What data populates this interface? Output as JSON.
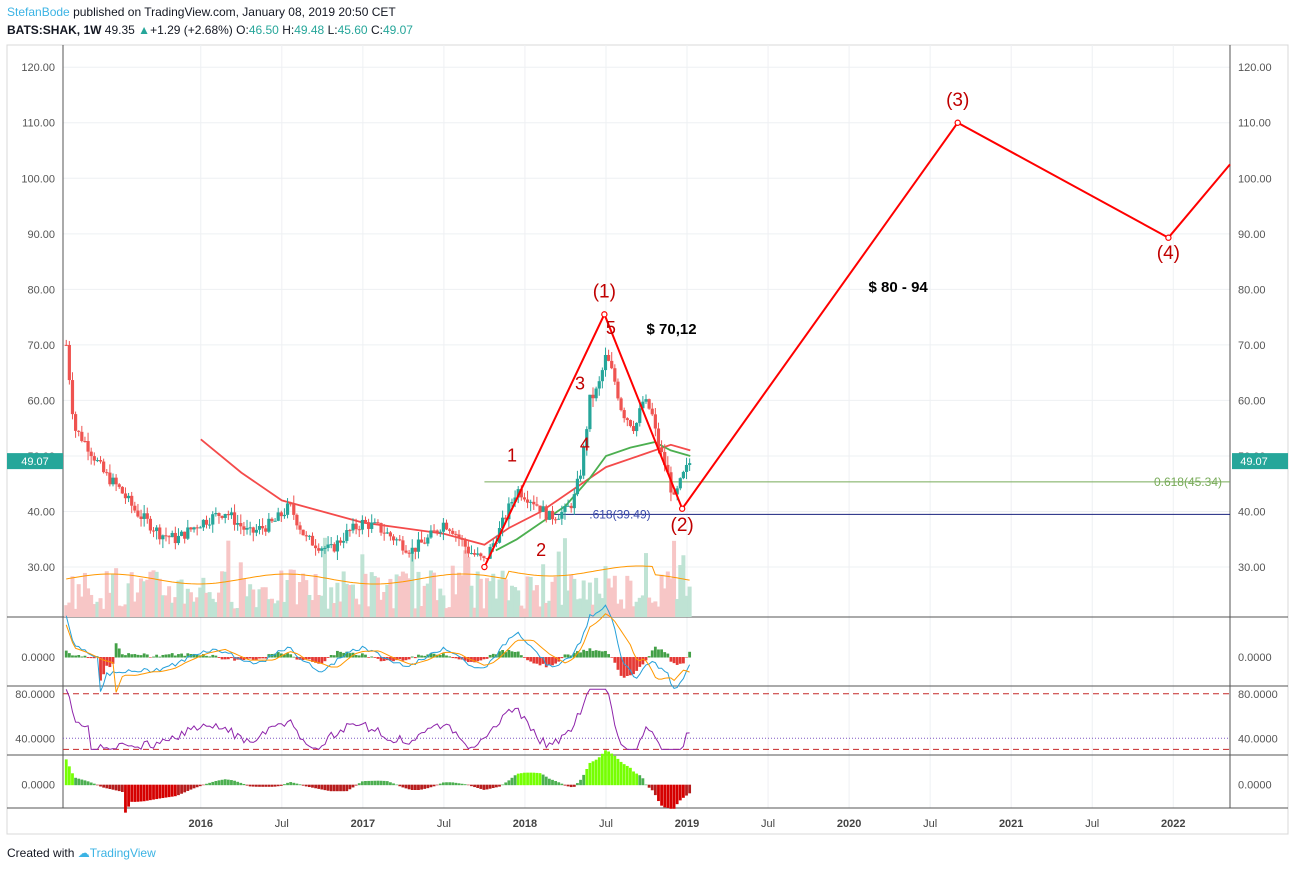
{
  "header": {
    "author": "StefanBode",
    "published": "published on TradingView.com, January 08, 2019 20:50 CET",
    "symbol": "BATS:SHAK, 1W",
    "price": "49.35",
    "change_arrow": "▲",
    "change": "+1.29 (+2.68%)",
    "o_label": "O:",
    "o": "46.50",
    "h_label": "H:",
    "h": "49.48",
    "l_label": "L:",
    "l": "45.60",
    "c_label": "C:",
    "c": "49.07"
  },
  "footer": {
    "created_with": "Created with",
    "brand": "TradingView"
  },
  "colors": {
    "up": "#26a69a",
    "down": "#ef5350",
    "wave": "#ff0000",
    "wave_label": "#c00000",
    "ma_red": "#f44b4b",
    "ma_green": "#4caf50",
    "fib_green": "#78ab59",
    "fib_navy": "#1a237e",
    "rsi": "#8e24aa",
    "macd_line": "#26a0d9",
    "signal_line": "#ff9800"
  },
  "chart_data": {
    "type": "candlestick",
    "price_axis": {
      "min": 21,
      "max": 124,
      "ticks": [
        30,
        40,
        50,
        60,
        70,
        80,
        90,
        100,
        110,
        120
      ],
      "tick_labels": [
        "30.00",
        "40.00",
        "50.00",
        "60.00",
        "70.00",
        "80.00",
        "90.00",
        "100.00",
        "110.00",
        "120.00"
      ]
    },
    "last_price_label": "49.07",
    "last_price": 49.07,
    "time_axis": {
      "start": 2015.15,
      "end": 2022.35,
      "ticks": [
        {
          "t": 2016.0,
          "label": "2016",
          "bold": true
        },
        {
          "t": 2016.5,
          "label": "Jul",
          "bold": false
        },
        {
          "t": 2017.0,
          "label": "2017",
          "bold": true
        },
        {
          "t": 2017.5,
          "label": "Jul",
          "bold": false
        },
        {
          "t": 2018.0,
          "label": "2018",
          "bold": true
        },
        {
          "t": 2018.5,
          "label": "Jul",
          "bold": false
        },
        {
          "t": 2019.0,
          "label": "2019",
          "bold": true
        },
        {
          "t": 2019.5,
          "label": "Jul",
          "bold": false
        },
        {
          "t": 2020.0,
          "label": "2020",
          "bold": true
        },
        {
          "t": 2020.5,
          "label": "Jul",
          "bold": false
        },
        {
          "t": 2021.0,
          "label": "2021",
          "bold": true
        },
        {
          "t": 2021.5,
          "label": "Jul",
          "bold": false
        },
        {
          "t": 2022.0,
          "label": "2022",
          "bold": true
        }
      ]
    },
    "price_path": [
      [
        2015.17,
        70
      ],
      [
        2015.22,
        55
      ],
      [
        2015.3,
        52
      ],
      [
        2015.4,
        47
      ],
      [
        2015.5,
        44
      ],
      [
        2015.6,
        40
      ],
      [
        2015.75,
        36
      ],
      [
        2015.85,
        35
      ],
      [
        2016.0,
        38
      ],
      [
        2016.15,
        40
      ],
      [
        2016.3,
        36
      ],
      [
        2016.45,
        38
      ],
      [
        2016.55,
        41
      ],
      [
        2016.65,
        35
      ],
      [
        2016.8,
        33
      ],
      [
        2016.9,
        36
      ],
      [
        2017.0,
        38
      ],
      [
        2017.1,
        37
      ],
      [
        2017.2,
        35
      ],
      [
        2017.3,
        33
      ],
      [
        2017.4,
        35
      ],
      [
        2017.5,
        38
      ],
      [
        2017.55,
        37
      ],
      [
        2017.65,
        33
      ],
      [
        2017.75,
        31
      ],
      [
        2017.85,
        37
      ],
      [
        2017.95,
        44
      ],
      [
        2018.05,
        42
      ],
      [
        2018.15,
        39
      ],
      [
        2018.25,
        40
      ],
      [
        2018.3,
        42
      ],
      [
        2018.35,
        48
      ],
      [
        2018.38,
        55
      ],
      [
        2018.4,
        60
      ],
      [
        2018.45,
        62
      ],
      [
        2018.5,
        68
      ],
      [
        2018.55,
        64
      ],
      [
        2018.6,
        58
      ],
      [
        2018.68,
        55
      ],
      [
        2018.73,
        60
      ],
      [
        2018.78,
        58
      ],
      [
        2018.82,
        52
      ],
      [
        2018.87,
        48
      ],
      [
        2018.92,
        42
      ],
      [
        2018.97,
        46
      ],
      [
        2019.02,
        49
      ]
    ],
    "ma_red": [
      [
        2016.0,
        53
      ],
      [
        2016.25,
        47
      ],
      [
        2016.5,
        42
      ],
      [
        2016.75,
        40
      ],
      [
        2017.0,
        38
      ],
      [
        2017.25,
        37
      ],
      [
        2017.5,
        36
      ],
      [
        2017.75,
        34
      ],
      [
        2017.9,
        37
      ],
      [
        2018.1,
        40
      ],
      [
        2018.3,
        44
      ],
      [
        2018.5,
        48
      ],
      [
        2018.7,
        50
      ],
      [
        2018.9,
        52
      ],
      [
        2019.02,
        51
      ]
    ],
    "ma_green": [
      [
        2017.82,
        33
      ],
      [
        2017.95,
        35
      ],
      [
        2018.1,
        38
      ],
      [
        2018.25,
        41
      ],
      [
        2018.4,
        46
      ],
      [
        2018.5,
        50
      ],
      [
        2018.65,
        51.5
      ],
      [
        2018.8,
        52.5
      ],
      [
        2018.9,
        51
      ],
      [
        2019.02,
        50
      ]
    ],
    "fib_levels": [
      {
        "value": 45.34,
        "label": "0.618(45.34)",
        "color": "#78ab59",
        "t_start": 2017.75
      },
      {
        "value": 39.49,
        "label": ".618(39.49)",
        "color": "#1a237e",
        "t_start": 2018.15
      }
    ],
    "wave_projection": [
      {
        "t": 2017.75,
        "v": 30.0
      },
      {
        "t": 2018.49,
        "v": 75.5
      },
      {
        "t": 2018.97,
        "v": 40.5
      },
      {
        "t": 2020.67,
        "v": 110.0
      },
      {
        "t": 2021.97,
        "v": 89.3
      },
      {
        "t": 2022.35,
        "v": 102.5
      }
    ],
    "wave_labels": [
      {
        "text": "(1)",
        "t": 2018.49,
        "v": 78.5
      },
      {
        "text": "(2)",
        "t": 2018.97,
        "v": 36.5
      },
      {
        "text": "(3)",
        "t": 2020.67,
        "v": 113.0
      },
      {
        "text": "(4)",
        "t": 2021.97,
        "v": 85.5
      },
      {
        "text": "1",
        "t": 2017.92,
        "v": 49.0
      },
      {
        "text": "2",
        "t": 2018.1,
        "v": 32.0
      },
      {
        "text": "3",
        "t": 2018.34,
        "v": 62.0
      },
      {
        "text": "4",
        "t": 2018.37,
        "v": 51.0
      },
      {
        "text": "5",
        "t": 2018.53,
        "v": 72.0
      }
    ],
    "annotations": [
      {
        "text": "$ 70,12",
        "t": 2018.75,
        "v": 72.0
      },
      {
        "text": "$ 80 - 94",
        "t": 2020.12,
        "v": 79.5
      }
    ],
    "macd_panel": {
      "tick_label": "0.0000",
      "range": [
        -1,
        1
      ]
    },
    "rsi_panel": {
      "tick_labels": [
        "80.0000",
        "40.0000"
      ],
      "levels": [
        80,
        40
      ],
      "bands": [
        80,
        30
      ],
      "range": [
        25,
        87
      ]
    },
    "osc_panel": {
      "tick_label": "0.0000",
      "range": [
        -1,
        1
      ]
    }
  }
}
